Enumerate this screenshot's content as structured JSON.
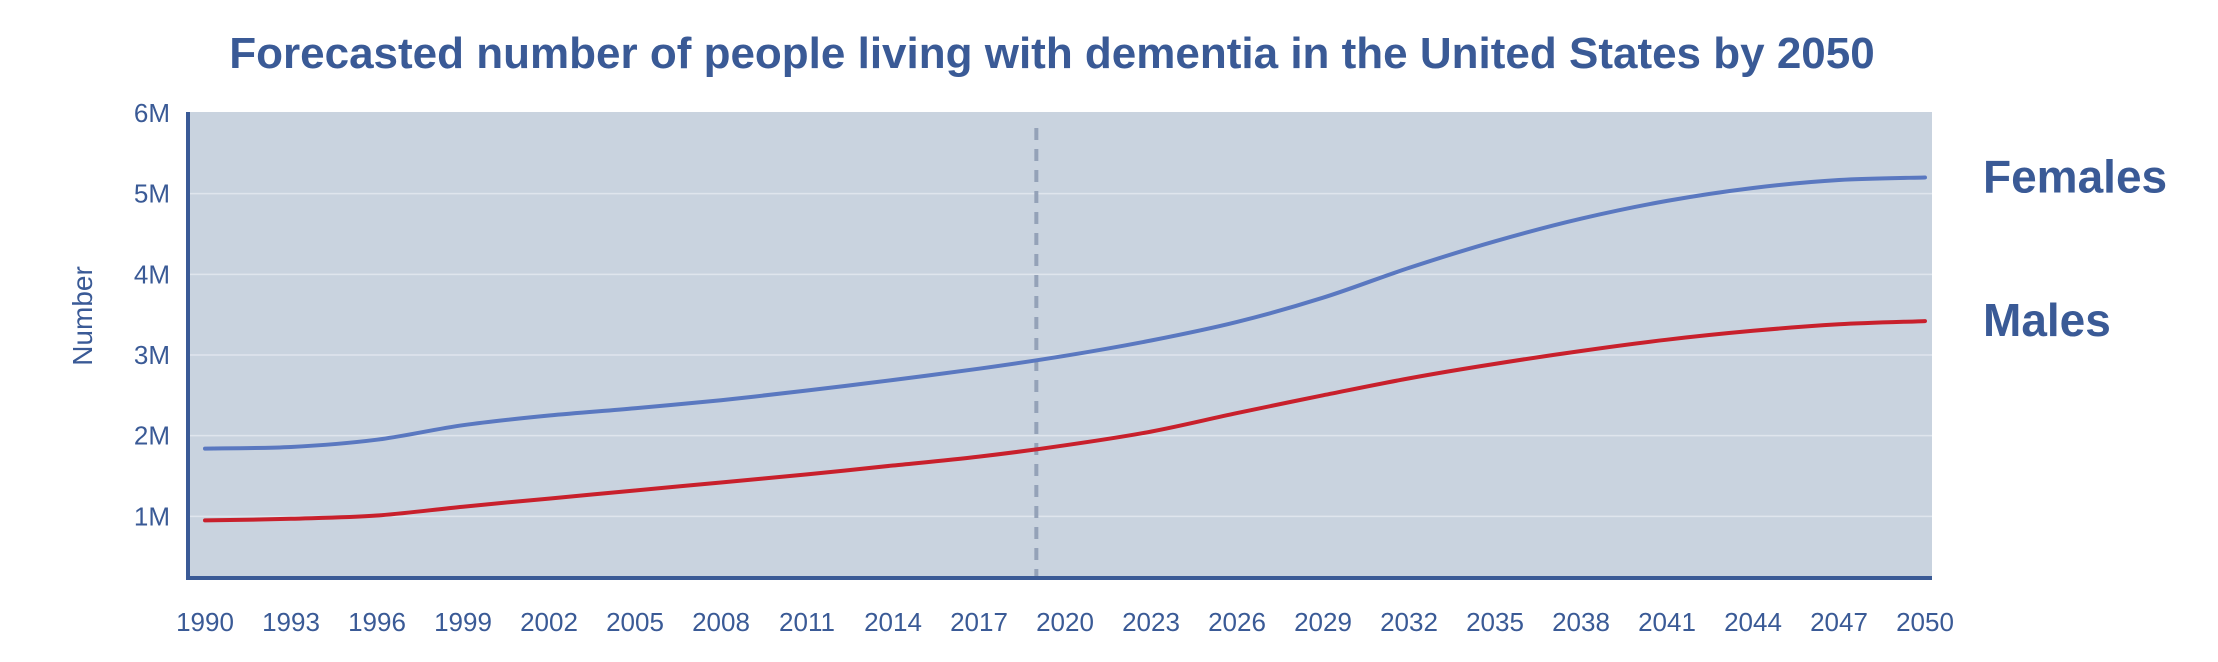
{
  "chart_data": {
    "type": "line",
    "title": "Forecasted number of people living with dementia in the United States by 2050",
    "xlabel": "",
    "ylabel": "Number",
    "x": [
      1990,
      1993,
      1996,
      1999,
      2002,
      2005,
      2008,
      2011,
      2014,
      2017,
      2020,
      2023,
      2026,
      2029,
      2032,
      2035,
      2038,
      2041,
      2044,
      2047,
      2050
    ],
    "x_tick_labels": [
      "1990",
      "1993",
      "1996",
      "1999",
      "2002",
      "2005",
      "2008",
      "2011",
      "2014",
      "2017",
      "2020",
      "2023",
      "2026",
      "2029",
      "2032",
      "2035",
      "2038",
      "2041",
      "2044",
      "2047",
      "2050"
    ],
    "y_ticks": [
      1000000,
      2000000,
      3000000,
      4000000,
      5000000,
      6000000
    ],
    "y_tick_labels": [
      "1M",
      "2M",
      "3M",
      "4M",
      "5M",
      "6M"
    ],
    "ylim": [
      0,
      6000000
    ],
    "xlim": [
      1989.5,
      2050.5
    ],
    "grid": true,
    "reference_line_x": 2019,
    "series": [
      {
        "name": "Females",
        "color": "#5a78c0",
        "values": [
          1840000,
          1860000,
          1950000,
          2130000,
          2250000,
          2340000,
          2440000,
          2560000,
          2690000,
          2830000,
          2990000,
          3180000,
          3410000,
          3710000,
          4080000,
          4410000,
          4690000,
          4910000,
          5070000,
          5170000,
          5200000
        ]
      },
      {
        "name": "Males",
        "color": "#c8202c",
        "values": [
          950000,
          970000,
          1010000,
          1120000,
          1220000,
          1320000,
          1420000,
          1520000,
          1630000,
          1740000,
          1880000,
          2050000,
          2280000,
          2500000,
          2710000,
          2890000,
          3050000,
          3190000,
          3300000,
          3380000,
          3420000
        ]
      }
    ],
    "colors": {
      "plot_background": "#c9d3df",
      "text": "#3a5a96",
      "axis": "#3a5a96",
      "gridline": "#dfe5ed",
      "reference_line": "#94a2b8"
    }
  }
}
